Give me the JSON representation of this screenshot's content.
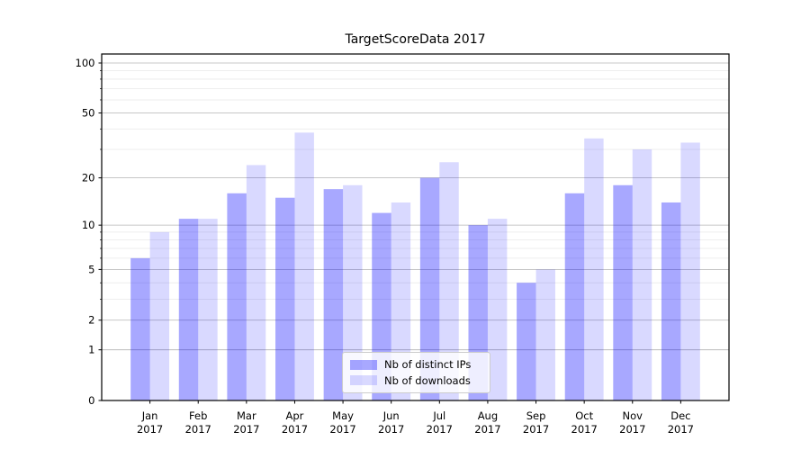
{
  "chart_data": {
    "type": "bar",
    "title": "TargetScoreData 2017",
    "categories": [
      "Jan",
      "Feb",
      "Mar",
      "Apr",
      "May",
      "Jun",
      "Jul",
      "Aug",
      "Sep",
      "Oct",
      "Nov",
      "Dec"
    ],
    "x_tick_second_line": "2017",
    "series": [
      {
        "name": "Nb of distinct IPs",
        "key": "distinct-ips",
        "color": "#0000ff",
        "alpha": 0.34,
        "values": [
          6,
          11,
          16,
          15,
          17,
          12,
          20,
          10,
          4,
          16,
          18,
          14
        ]
      },
      {
        "name": "Nb of downloads",
        "key": "downloads",
        "color": "#0000ff",
        "alpha": 0.15,
        "values": [
          9,
          11,
          24,
          38,
          18,
          14,
          25,
          11,
          5,
          35,
          30,
          33
        ]
      }
    ],
    "y_axis": {
      "scale": "log1p",
      "lim": [
        0,
        100
      ],
      "major_ticks": [
        0,
        1,
        2,
        5,
        10,
        20,
        50,
        100
      ],
      "minor_ticks": [
        3,
        4,
        6,
        7,
        8,
        9,
        30,
        40,
        60,
        70,
        80,
        90
      ]
    },
    "grid": {
      "major_color": "#b4b4b4",
      "minor_color": "#e8e8e8"
    },
    "spine_color": "#000000",
    "text_color": "#000000",
    "legend_position": "lower-center"
  }
}
